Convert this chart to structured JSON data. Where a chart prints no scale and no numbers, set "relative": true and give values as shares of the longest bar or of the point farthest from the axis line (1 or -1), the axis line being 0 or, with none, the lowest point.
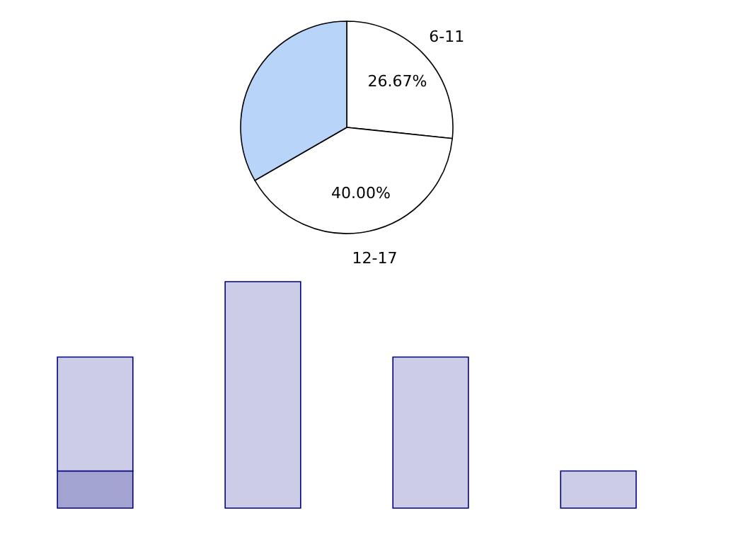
{
  "chart_data": [
    {
      "type": "pie",
      "categories": [
        "6-11",
        "12-17",
        null
      ],
      "values": [
        26.67,
        40.0,
        33.33
      ],
      "colors": [
        "#ffffff",
        "#ffffff",
        "#b8d4f8"
      ],
      "value_labels": [
        "26.67%",
        "40.00%",
        null
      ]
    },
    {
      "type": "bar",
      "relative": true,
      "stacked": true,
      "categories": [
        null,
        null,
        null,
        null
      ],
      "series": [
        {
          "color": "#a3a3d1",
          "values": [
            0.164,
            null,
            null,
            null
          ]
        },
        {
          "color": "#cccce6",
          "values": [
            0.503,
            1,
            0.667,
            0.164
          ]
        }
      ]
    }
  ]
}
